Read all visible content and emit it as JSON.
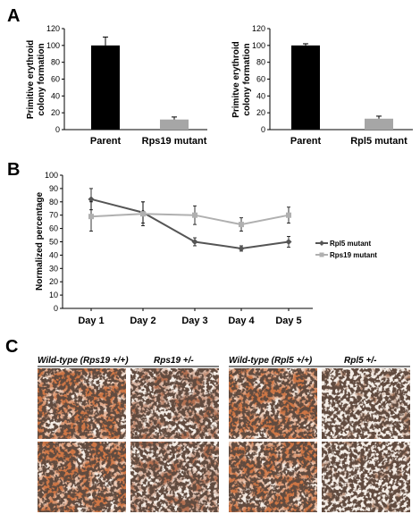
{
  "panels": {
    "a": {
      "letter": "A"
    },
    "b": {
      "letter": "B"
    },
    "c": {
      "letter": "C"
    }
  },
  "chart_data": [
    {
      "panel": "A",
      "type": "bar",
      "ylabel": "Primitive erythroid colony formation",
      "ylabel_lines": [
        "Primitive erythroid",
        "colony formation"
      ],
      "ylim": [
        0,
        120
      ],
      "yticks": [
        0,
        20,
        40,
        60,
        80,
        100,
        120
      ],
      "categories": [
        "Parent",
        "Rps19 mutant"
      ],
      "values": [
        100,
        12
      ],
      "errors": [
        10,
        3
      ],
      "colors": [
        "#000000",
        "#a6a6a6"
      ]
    },
    {
      "panel": "A",
      "type": "bar",
      "ylabel": "Primitve erythroid colony formation",
      "ylabel_lines": [
        "Primitve erythroid",
        "colony formation"
      ],
      "ylim": [
        0,
        120
      ],
      "yticks": [
        0,
        20,
        40,
        60,
        80,
        100,
        120
      ],
      "categories": [
        "Parent",
        "Rpl5 mutant"
      ],
      "values": [
        100,
        13
      ],
      "errors": [
        2,
        3
      ],
      "colors": [
        "#000000",
        "#a6a6a6"
      ]
    },
    {
      "panel": "B",
      "type": "line",
      "ylabel": "Normalized percentage",
      "ylim": [
        0,
        100
      ],
      "yticks": [
        0,
        10,
        20,
        30,
        40,
        50,
        60,
        70,
        80,
        90,
        100
      ],
      "categories": [
        "Day 1",
        "Day 2",
        "Day 3",
        "Day 4",
        "Day 5"
      ],
      "legend_position": "right",
      "series": [
        {
          "name": "Rpl5 mutant",
          "color": "#555555",
          "marker": "diamond",
          "values": [
            82,
            72,
            50,
            45,
            50
          ],
          "errors": [
            8,
            8,
            3,
            2,
            4
          ]
        },
        {
          "name": "Rps19 mutant",
          "color": "#b0b0b0",
          "marker": "square",
          "values": [
            69,
            71,
            70,
            63,
            70
          ],
          "errors": [
            11,
            9,
            7,
            5,
            6
          ]
        }
      ]
    }
  ],
  "micrographs": {
    "labels": [
      "Wild-type (Rps19 +/+)",
      "Rps19 +/-",
      "Wild-type (Rpl5 +/+)",
      "Rpl5 +/-"
    ]
  }
}
